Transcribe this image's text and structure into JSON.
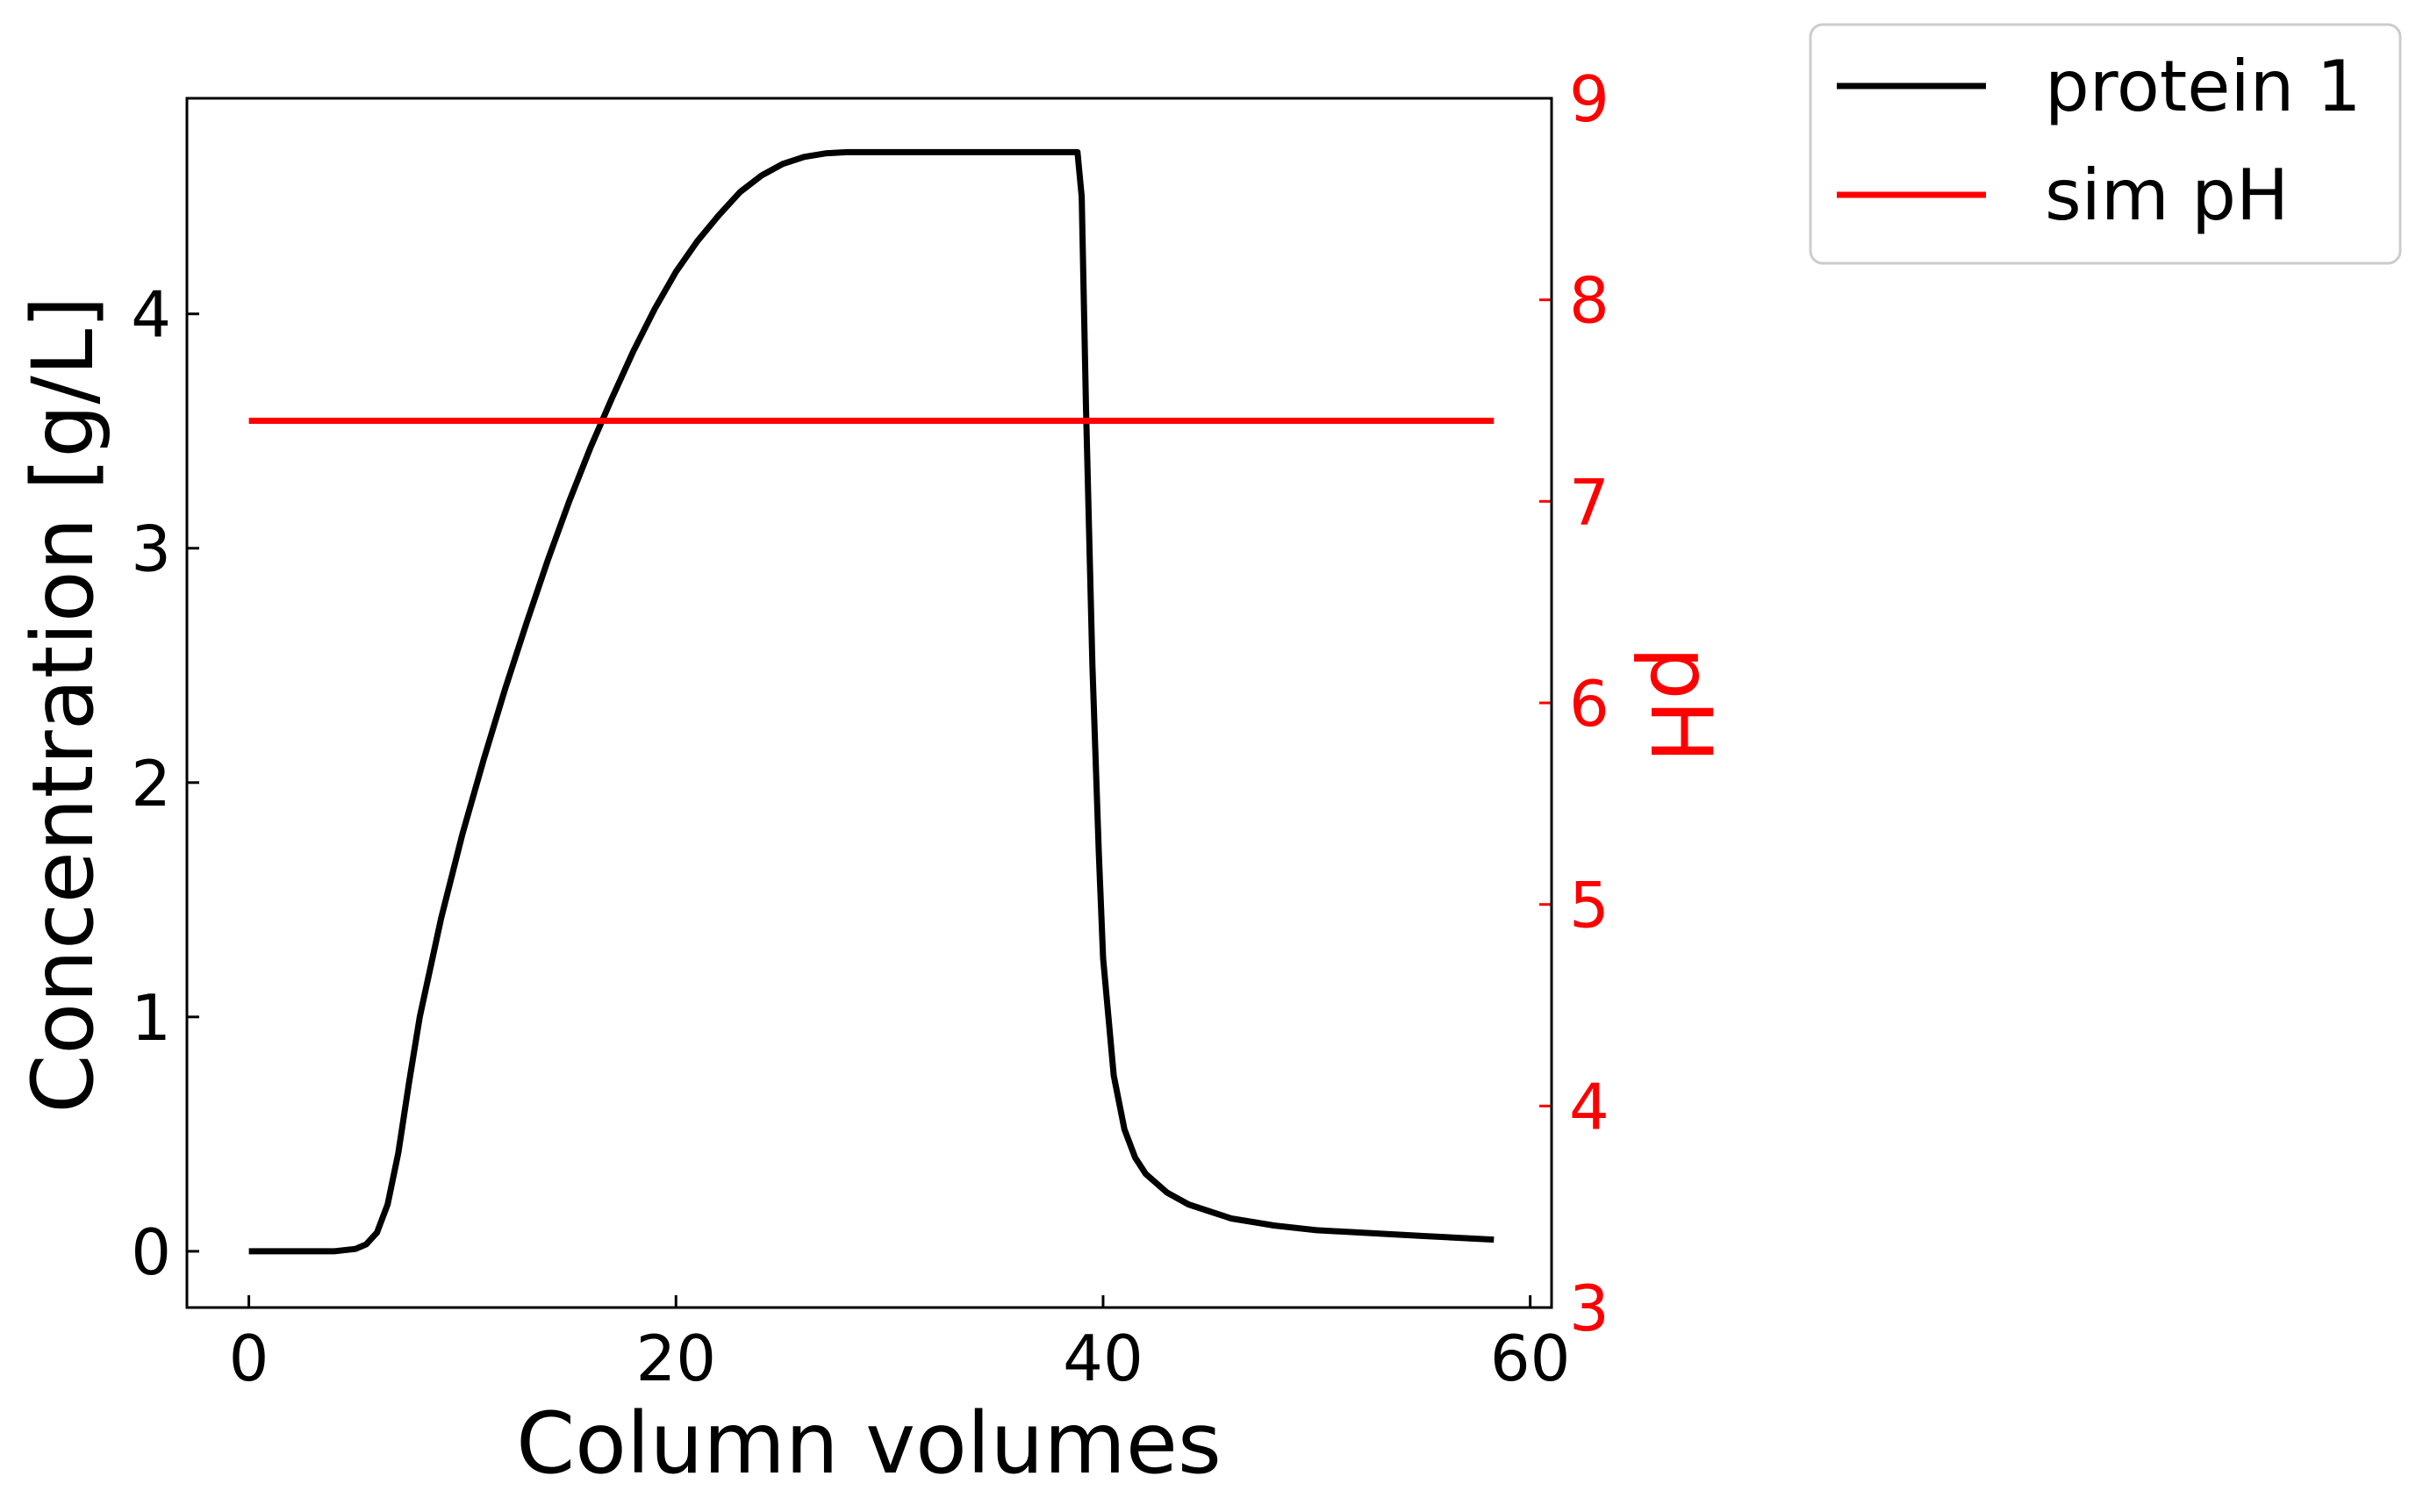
{
  "chart_data": {
    "type": "line",
    "xlabel": "Column volumes",
    "ylabel": "Concentration [g/L]",
    "y2label": "pH",
    "xlim": [
      -2.9,
      61.0
    ],
    "ylim": [
      -0.24,
      4.92
    ],
    "y2lim": [
      3,
      9
    ],
    "xticks": [
      "0",
      "20",
      "40",
      "60"
    ],
    "yticks": [
      "0",
      "1",
      "2",
      "3",
      "4"
    ],
    "y2ticks": [
      "3",
      "4",
      "5",
      "6",
      "7",
      "8",
      "9"
    ],
    "legend_position": "outside top-right",
    "series": [
      {
        "name": "protein 1",
        "axis": "left",
        "color": "#000000",
        "x": [
          0,
          2,
          4,
          5,
          5.5,
          6,
          6.5,
          7,
          7.5,
          8,
          9,
          10,
          11,
          12,
          13,
          14,
          15,
          16,
          17,
          18,
          19,
          20,
          21,
          22,
          23,
          24,
          25,
          26,
          27,
          28,
          29,
          30,
          32,
          35,
          38,
          38.5,
          38.8,
          39,
          39.2,
          39.5,
          39.8,
          40,
          40.5,
          41,
          41.5,
          42,
          43,
          44,
          45,
          46,
          48,
          50,
          52,
          55,
          58.3
        ],
        "y": [
          0,
          0,
          0,
          0.01,
          0.03,
          0.08,
          0.2,
          0.42,
          0.72,
          1.0,
          1.42,
          1.78,
          2.1,
          2.4,
          2.68,
          2.95,
          3.2,
          3.43,
          3.64,
          3.84,
          4.02,
          4.18,
          4.31,
          4.42,
          4.52,
          4.59,
          4.64,
          4.67,
          4.685,
          4.69,
          4.69,
          4.69,
          4.69,
          4.69,
          4.69,
          4.69,
          4.69,
          4.5,
          3.6,
          2.5,
          1.7,
          1.25,
          0.75,
          0.52,
          0.4,
          0.33,
          0.25,
          0.2,
          0.17,
          0.14,
          0.11,
          0.09,
          0.08,
          0.065,
          0.05
        ]
      },
      {
        "name": "sim pH",
        "axis": "right",
        "color": "#ff0000",
        "x": [
          0,
          58.3
        ],
        "y": [
          7.4,
          7.4
        ]
      }
    ]
  }
}
